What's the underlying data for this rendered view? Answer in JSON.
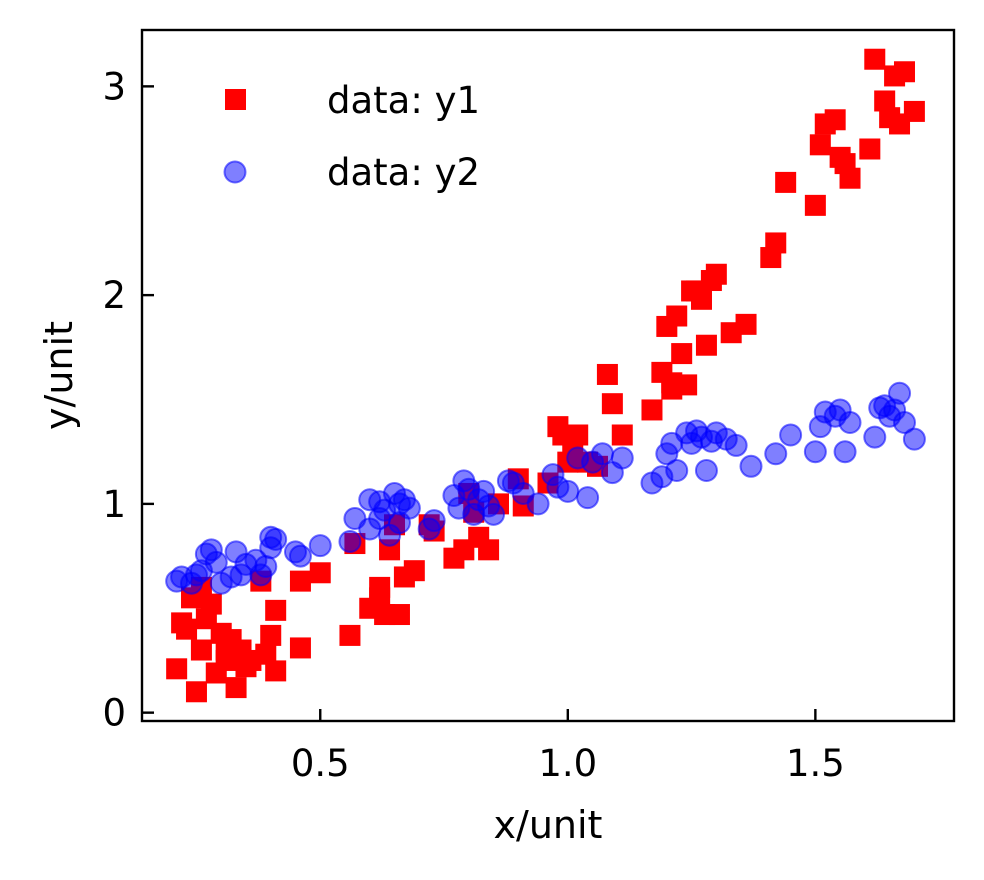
{
  "chart_data": {
    "type": "scatter",
    "title": "",
    "xlabel": "x/unit",
    "ylabel": "y/unit",
    "xlim": [
      0.14,
      1.78
    ],
    "ylim": [
      -0.04,
      3.27
    ],
    "xticks": [
      0.5,
      1.0,
      1.5
    ],
    "xtick_labels": [
      "0.5",
      "1.0",
      "1.5"
    ],
    "yticks": [
      0,
      1,
      2,
      3
    ],
    "ytick_labels": [
      "0",
      "1",
      "2",
      "3"
    ],
    "grid": false,
    "legend_position": "top-left",
    "series": [
      {
        "name": "data: y1",
        "marker": "square",
        "color": "#ff0000",
        "opacity": 1.0,
        "x": [
          0.21,
          0.22,
          0.23,
          0.24,
          0.25,
          0.26,
          0.27,
          0.28,
          0.29,
          0.3,
          0.31,
          0.32,
          0.33,
          0.34,
          0.35,
          0.36,
          0.38,
          0.39,
          0.4,
          0.41,
          0.41,
          0.46,
          0.46,
          0.5,
          0.56,
          0.57,
          0.6,
          0.62,
          0.63,
          0.64,
          0.66,
          0.67,
          0.69,
          0.72,
          0.73,
          0.77,
          0.79,
          0.81,
          0.82,
          0.84,
          0.86,
          0.9,
          0.91,
          0.98,
          0.99,
          1.01,
          1.02,
          1.04,
          1.06,
          1.08,
          1.09,
          1.11,
          1.17,
          1.19,
          1.2,
          1.21,
          1.22,
          1.23,
          1.24,
          1.25,
          1.27,
          1.28,
          1.29,
          1.3,
          1.33,
          1.36,
          1.41,
          1.42,
          1.44,
          1.5,
          1.51,
          1.52,
          1.54,
          1.55,
          1.56,
          1.57,
          1.61,
          1.62,
          1.64,
          1.65,
          1.66,
          1.67,
          1.68,
          1.7,
          0.26,
          0.31,
          0.62,
          0.65,
          0.8,
          0.96,
          1.0,
          1.21,
          1.26
        ],
        "y": [
          0.21,
          0.43,
          0.4,
          0.55,
          0.1,
          0.3,
          0.45,
          0.52,
          0.19,
          0.38,
          0.25,
          0.35,
          0.12,
          0.3,
          0.22,
          0.25,
          0.63,
          0.28,
          0.37,
          0.2,
          0.49,
          0.31,
          0.63,
          0.67,
          0.37,
          0.81,
          0.5,
          0.6,
          0.47,
          0.78,
          0.47,
          0.65,
          0.68,
          0.9,
          0.87,
          0.74,
          0.78,
          0.96,
          0.84,
          0.78,
          1.0,
          1.12,
          0.99,
          1.37,
          1.33,
          1.25,
          1.33,
          1.2,
          1.18,
          1.62,
          1.48,
          1.33,
          1.45,
          1.63,
          1.85,
          1.58,
          1.9,
          1.72,
          1.57,
          2.02,
          1.98,
          1.76,
          2.07,
          2.1,
          1.82,
          1.86,
          2.18,
          2.25,
          2.54,
          2.43,
          2.72,
          2.82,
          2.84,
          2.66,
          2.63,
          2.56,
          2.7,
          3.13,
          2.93,
          2.85,
          3.05,
          2.82,
          3.07,
          2.88,
          0.6,
          0.3,
          0.55,
          0.9,
          1.05,
          1.1,
          1.2,
          1.55,
          2.02
        ]
      },
      {
        "name": "data: y2",
        "marker": "circle",
        "color": "#0000ff",
        "opacity": 0.5,
        "x": [
          0.21,
          0.22,
          0.24,
          0.26,
          0.27,
          0.28,
          0.29,
          0.3,
          0.32,
          0.33,
          0.35,
          0.37,
          0.38,
          0.39,
          0.4,
          0.41,
          0.45,
          0.46,
          0.5,
          0.56,
          0.57,
          0.6,
          0.62,
          0.63,
          0.64,
          0.65,
          0.66,
          0.67,
          0.68,
          0.72,
          0.73,
          0.77,
          0.78,
          0.79,
          0.8,
          0.81,
          0.82,
          0.83,
          0.84,
          0.85,
          0.89,
          0.91,
          0.97,
          0.98,
          1.0,
          1.02,
          1.04,
          1.07,
          1.09,
          1.11,
          1.17,
          1.19,
          1.2,
          1.21,
          1.22,
          1.24,
          1.25,
          1.27,
          1.28,
          1.29,
          1.3,
          1.32,
          1.34,
          1.37,
          1.42,
          1.45,
          1.5,
          1.51,
          1.52,
          1.54,
          1.55,
          1.56,
          1.57,
          1.62,
          1.63,
          1.64,
          1.65,
          1.66,
          1.67,
          1.68,
          1.7,
          0.25,
          0.34,
          0.4,
          0.6,
          0.88,
          1.05,
          1.26,
          0.62,
          0.66,
          0.94
        ],
        "y": [
          0.63,
          0.65,
          0.62,
          0.68,
          0.76,
          0.78,
          0.72,
          0.62,
          0.65,
          0.77,
          0.71,
          0.73,
          0.66,
          0.7,
          0.79,
          0.83,
          0.77,
          0.75,
          0.8,
          0.82,
          0.93,
          0.88,
          1.01,
          0.97,
          0.85,
          1.05,
          0.91,
          1.02,
          0.98,
          0.88,
          0.92,
          1.04,
          0.98,
          1.11,
          1.07,
          0.95,
          1.02,
          1.06,
          0.99,
          0.95,
          1.1,
          1.05,
          1.14,
          1.08,
          1.06,
          1.22,
          1.03,
          1.24,
          1.15,
          1.22,
          1.1,
          1.13,
          1.24,
          1.29,
          1.16,
          1.34,
          1.29,
          1.32,
          1.16,
          1.3,
          1.34,
          1.31,
          1.28,
          1.18,
          1.24,
          1.33,
          1.25,
          1.37,
          1.44,
          1.42,
          1.45,
          1.25,
          1.39,
          1.32,
          1.46,
          1.47,
          1.42,
          1.45,
          1.53,
          1.39,
          1.31,
          0.66,
          0.66,
          0.84,
          1.02,
          1.11,
          1.2,
          1.35,
          0.93,
          1.0,
          1.0
        ]
      }
    ]
  }
}
